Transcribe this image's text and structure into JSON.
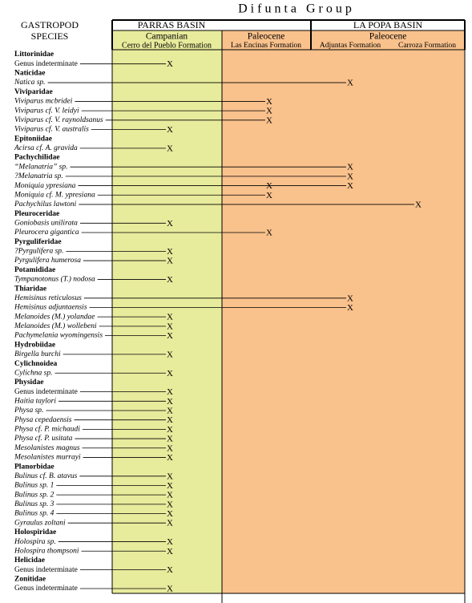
{
  "header": {
    "title": "Difunta Group",
    "species_heading": [
      "GASTROPOD",
      "SPECIES"
    ],
    "basins": [
      {
        "name": "PARRAS BASIN",
        "stages": [
          {
            "age": "Campanian",
            "formation": "Cerro del Pueblo Formation"
          },
          {
            "age": "Paleocene",
            "formation": "Las Encinas Formation"
          }
        ]
      },
      {
        "name": "LA POPA BASIN",
        "stages": [
          {
            "age": "Paleocene",
            "formations": [
              "Adjuntas Formation",
              "Carroza Formation"
            ]
          }
        ]
      }
    ]
  },
  "rows": [
    {
      "label": "Littorinidae"
    },
    {
      "label": "Genus indeterminate",
      "italic": false,
      "occurrences": [
        "X",
        null,
        null,
        null
      ]
    },
    {
      "label": "Naticidae"
    },
    {
      "label": "Natica sp.",
      "occurrences": [
        null,
        null,
        "X",
        null
      ]
    },
    {
      "label": "Viviparidae"
    },
    {
      "label": "Viviparus mcbridei",
      "occurrences": [
        null,
        "X",
        null,
        null
      ]
    },
    {
      "label": "Viviparus cf. V. leidyi",
      "occurrences": [
        null,
        "X",
        null,
        null
      ]
    },
    {
      "label": "Viviparus cf. V. raynoldsanus",
      "occurrences": [
        null,
        "X",
        null,
        null
      ]
    },
    {
      "label": "Viviparus cf. V. australis",
      "occurrences": [
        "X",
        null,
        null,
        null
      ]
    },
    {
      "label": "Epitoniidae"
    },
    {
      "label": "Acirsa cf. A. gravida",
      "occurrences": [
        "X",
        null,
        null,
        null
      ]
    },
    {
      "label": "Pachychilidae"
    },
    {
      "label": "“Melanatria” sp.",
      "occurrences": [
        null,
        null,
        "X",
        null
      ]
    },
    {
      "label": "?Melanatria sp.",
      "occurrences": [
        null,
        null,
        "X",
        null
      ]
    },
    {
      "label": "Moniquia ypresiana",
      "occurrences": [
        null,
        "X",
        "X",
        null
      ]
    },
    {
      "label": "Moniquia cf. M. ypresiana",
      "occurrences": [
        null,
        "X",
        null,
        null
      ]
    },
    {
      "label": "Pachychilus lawtoni",
      "occurrences": [
        null,
        null,
        null,
        "X"
      ]
    },
    {
      "label": "Pleuroceridae"
    },
    {
      "label": "Goniobasis unilirata",
      "occurrences": [
        "X",
        null,
        null,
        null
      ]
    },
    {
      "label": "Pleurocera gigantica",
      "occurrences": [
        null,
        "X",
        null,
        null
      ]
    },
    {
      "label": "Pyrguliferidae"
    },
    {
      "label": "?Pyrgulifera sp.",
      "occurrences": [
        "X",
        null,
        null,
        null
      ]
    },
    {
      "label": "Pyrgulifera humerosa",
      "occurrences": [
        "X",
        null,
        null,
        null
      ]
    },
    {
      "label": "Potamididae"
    },
    {
      "label": "Tympanotonus (T.) nodosa",
      "occurrences": [
        "X",
        null,
        null,
        null
      ]
    },
    {
      "label": "Thiaridae"
    },
    {
      "label": "Hemisinus reticulosus",
      "occurrences": [
        null,
        null,
        "X",
        null
      ]
    },
    {
      "label": "Hemisinus adjuntaensis",
      "occurrences": [
        null,
        null,
        "X",
        null
      ]
    },
    {
      "label": "Melanoides (M.) yolandae",
      "occurrences": [
        "X",
        null,
        null,
        null
      ]
    },
    {
      "label": "Melanoides (M.) wollebeni",
      "occurrences": [
        "X",
        null,
        null,
        null
      ]
    },
    {
      "label": "Pachymelania wyomingensis",
      "occurrences": [
        "X",
        null,
        null,
        null
      ]
    },
    {
      "label": "Hydrobiidae"
    },
    {
      "label": "Birgella burchi",
      "occurrences": [
        "X",
        null,
        null,
        null
      ]
    },
    {
      "label": "Cylichnoidea"
    },
    {
      "label": "Cylichna sp.",
      "occurrences": [
        "X",
        null,
        null,
        null
      ]
    },
    {
      "label": "Physidae"
    },
    {
      "label": "Genus indeterminate",
      "italic": false,
      "occurrences": [
        "X",
        null,
        null,
        null
      ]
    },
    {
      "label": "Haitia taylori",
      "occurrences": [
        "X",
        null,
        null,
        null
      ]
    },
    {
      "label": "Physa sp.",
      "occurrences": [
        "X",
        null,
        null,
        null
      ]
    },
    {
      "label": "Physa cepedaensis",
      "occurrences": [
        "X",
        null,
        null,
        null
      ]
    },
    {
      "label": "Physa cf. P. michaudi",
      "occurrences": [
        "X",
        null,
        null,
        null
      ]
    },
    {
      "label": "Physa cf. P. usitata",
      "occurrences": [
        "X",
        null,
        null,
        null
      ]
    },
    {
      "label": "Mesolanistes magnus",
      "occurrences": [
        "X",
        null,
        null,
        null
      ]
    },
    {
      "label": "Mesolanistes murrayi",
      "occurrences": [
        "X",
        null,
        null,
        null
      ]
    },
    {
      "label": "Planorbidae"
    },
    {
      "label": "Bulinus cf. B. atavus",
      "occurrences": [
        "X",
        null,
        null,
        null
      ]
    },
    {
      "label": "Bulinus sp. 1",
      "occurrences": [
        "X",
        null,
        null,
        null
      ]
    },
    {
      "label": "Bulinus sp. 2",
      "occurrences": [
        "X",
        null,
        null,
        null
      ]
    },
    {
      "label": "Bulinus sp. 3",
      "occurrences": [
        "X",
        null,
        null,
        null
      ]
    },
    {
      "label": "Bulinus sp. 4",
      "occurrences": [
        "X",
        null,
        null,
        null
      ]
    },
    {
      "label": "Gyraulus zoltani",
      "occurrences": [
        "X",
        null,
        null,
        null
      ]
    },
    {
      "label": "Holospiridae"
    },
    {
      "label": "Holospira sp.",
      "occurrences": [
        "X",
        null,
        null,
        null
      ]
    },
    {
      "label": "Holospira thompsoni",
      "occurrences": [
        "X",
        null,
        null,
        null
      ]
    },
    {
      "label": "Helicidae"
    },
    {
      "label": "Genus indeterminate",
      "italic": false,
      "occurrences": [
        "X",
        null,
        null,
        null
      ]
    },
    {
      "label": "Zonitidae"
    },
    {
      "label": "Genus indeterminate",
      "italic": false,
      "occurrences": [
        "X",
        null,
        null,
        null
      ]
    }
  ]
}
